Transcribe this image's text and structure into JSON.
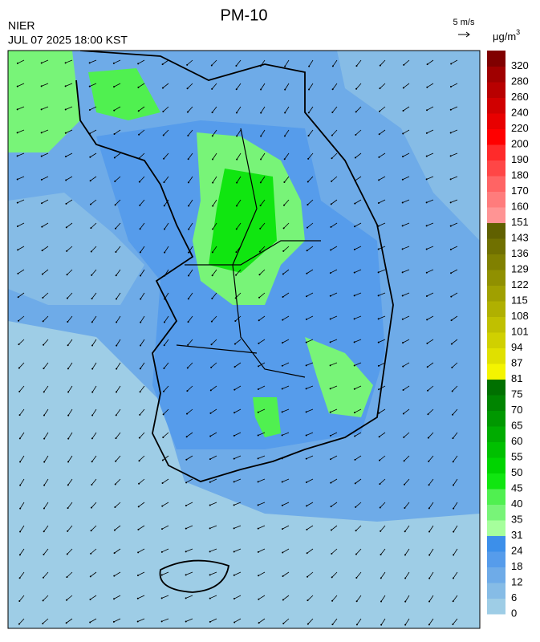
{
  "header": {
    "title": "PM-10",
    "agency": "NIER",
    "timestamp": "JUL 07 2025 18:00 KST",
    "wind_scale": "5 m/s"
  },
  "legend": {
    "unit": "μg/m",
    "unit_sup": "3",
    "levels": [
      {
        "value": 0,
        "color": "#9ecde6"
      },
      {
        "value": 6,
        "color": "#86bce6"
      },
      {
        "value": 12,
        "color": "#6eabe8"
      },
      {
        "value": 18,
        "color": "#569ceb"
      },
      {
        "value": 24,
        "color": "#3c8fea"
      },
      {
        "value": 31,
        "color": "#a6ff9c"
      },
      {
        "value": 35,
        "color": "#78f478"
      },
      {
        "value": 40,
        "color": "#50f050"
      },
      {
        "value": 45,
        "color": "#10e610"
      },
      {
        "value": 50,
        "color": "#00d400"
      },
      {
        "value": 55,
        "color": "#00c000"
      },
      {
        "value": 60,
        "color": "#00ac00"
      },
      {
        "value": 65,
        "color": "#009800"
      },
      {
        "value": 70,
        "color": "#008400"
      },
      {
        "value": 75,
        "color": "#007000"
      },
      {
        "value": 81,
        "color": "#f4f400"
      },
      {
        "value": 87,
        "color": "#e0e000"
      },
      {
        "value": 94,
        "color": "#d0d000"
      },
      {
        "value": 101,
        "color": "#c0c000"
      },
      {
        "value": 108,
        "color": "#b0b000"
      },
      {
        "value": 115,
        "color": "#a0a000"
      },
      {
        "value": 122,
        "color": "#909000"
      },
      {
        "value": 129,
        "color": "#808000"
      },
      {
        "value": 136,
        "color": "#707000"
      },
      {
        "value": 143,
        "color": "#606000"
      },
      {
        "value": 151,
        "color": "#ff9494"
      },
      {
        "value": 160,
        "color": "#ff7c7c"
      },
      {
        "value": 170,
        "color": "#ff6464"
      },
      {
        "value": 180,
        "color": "#ff4646"
      },
      {
        "value": 190,
        "color": "#ff2a2a"
      },
      {
        "value": 200,
        "color": "#ff0000"
      },
      {
        "value": 220,
        "color": "#e80000"
      },
      {
        "value": 240,
        "color": "#d00000"
      },
      {
        "value": 260,
        "color": "#b80000"
      },
      {
        "value": 280,
        "color": "#a00000"
      },
      {
        "value": 320,
        "color": "#800000"
      }
    ]
  }
}
